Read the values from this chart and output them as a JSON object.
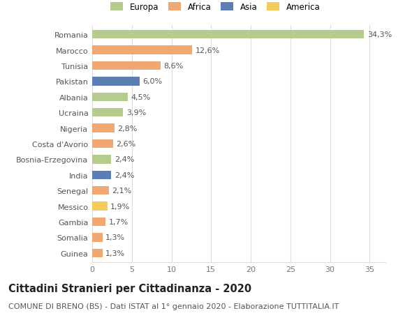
{
  "categories": [
    "Romania",
    "Marocco",
    "Tunisia",
    "Pakistan",
    "Albania",
    "Ucraina",
    "Nigeria",
    "Costa d'Avorio",
    "Bosnia-Erzegovina",
    "India",
    "Senegal",
    "Messico",
    "Gambia",
    "Somalia",
    "Guinea"
  ],
  "values": [
    34.3,
    12.6,
    8.6,
    6.0,
    4.5,
    3.9,
    2.8,
    2.6,
    2.4,
    2.4,
    2.1,
    1.9,
    1.7,
    1.3,
    1.3
  ],
  "labels": [
    "34,3%",
    "12,6%",
    "8,6%",
    "6,0%",
    "4,5%",
    "3,9%",
    "2,8%",
    "2,6%",
    "2,4%",
    "2,4%",
    "2,1%",
    "1,9%",
    "1,7%",
    "1,3%",
    "1,3%"
  ],
  "continent": [
    "Europa",
    "Africa",
    "Africa",
    "Asia",
    "Europa",
    "Europa",
    "Africa",
    "Africa",
    "Europa",
    "Asia",
    "Africa",
    "America",
    "Africa",
    "Africa",
    "Africa"
  ],
  "colors": {
    "Europa": "#b5cc8e",
    "Africa": "#f0a870",
    "Asia": "#5b7fb5",
    "America": "#f5cc5a"
  },
  "legend_order": [
    "Europa",
    "Africa",
    "Asia",
    "America"
  ],
  "title": "Cittadini Stranieri per Cittadinanza - 2020",
  "subtitle": "COMUNE DI BRENO (BS) - Dati ISTAT al 1° gennaio 2020 - Elaborazione TUTTITALIA.IT",
  "xlim": [
    0,
    37
  ],
  "xticks": [
    0,
    5,
    10,
    15,
    20,
    25,
    30,
    35
  ],
  "background_color": "#ffffff",
  "grid_color": "#dddddd",
  "bar_height": 0.55,
  "title_fontsize": 10.5,
  "subtitle_fontsize": 8,
  "tick_fontsize": 8,
  "label_fontsize": 8,
  "legend_fontsize": 8.5
}
